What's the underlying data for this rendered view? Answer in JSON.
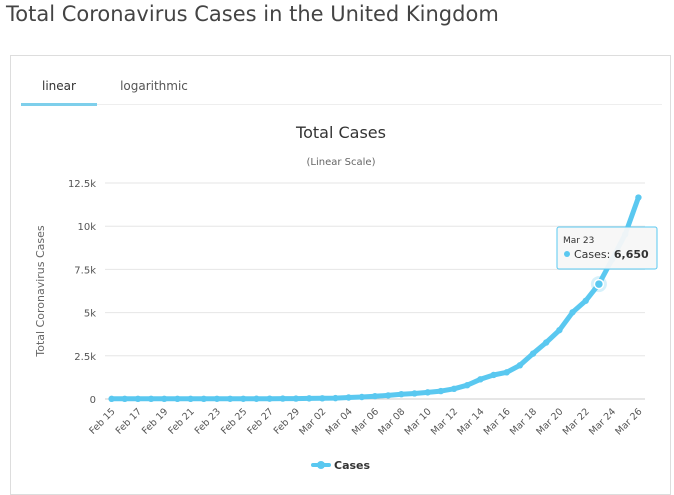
{
  "page": {
    "title": "Total Coronavirus Cases in the United Kingdom"
  },
  "tabs": [
    {
      "label": "linear",
      "active": true
    },
    {
      "label": "logarithmic",
      "active": false
    }
  ],
  "colors": {
    "series": "#5ac8f0",
    "accent_tab": "#7ecfeb",
    "grid": "#e6e6e6",
    "tooltip_border": "#5ac8f0"
  },
  "chart_data": {
    "type": "line",
    "title": "Total Cases",
    "subtitle": "(Linear Scale)",
    "xlabel": "",
    "ylabel": "Total Coronavirus Cases",
    "ylim": [
      0,
      12500
    ],
    "y_ticks": [
      0,
      2500,
      5000,
      7500,
      10000,
      12500
    ],
    "y_tick_labels": [
      "0",
      "2.5k",
      "5k",
      "7.5k",
      "10k",
      "12.5k"
    ],
    "grid": true,
    "legend": "bottom-center",
    "categories": [
      "Feb 15",
      "Feb 16",
      "Feb 17",
      "Feb 18",
      "Feb 19",
      "Feb 20",
      "Feb 21",
      "Feb 22",
      "Feb 23",
      "Feb 24",
      "Feb 25",
      "Feb 26",
      "Feb 27",
      "Feb 28",
      "Feb 29",
      "Mar 01",
      "Mar 02",
      "Mar 03",
      "Mar 04",
      "Mar 05",
      "Mar 06",
      "Mar 07",
      "Mar 08",
      "Mar 09",
      "Mar 10",
      "Mar 11",
      "Mar 12",
      "Mar 13",
      "Mar 14",
      "Mar 15",
      "Mar 16",
      "Mar 17",
      "Mar 18",
      "Mar 19",
      "Mar 20",
      "Mar 21",
      "Mar 22",
      "Mar 23",
      "Mar 24",
      "Mar 25",
      "Mar 26"
    ],
    "x_tick_labels": [
      "Feb 15",
      "Feb 17",
      "Feb 19",
      "Feb 21",
      "Feb 23",
      "Feb 25",
      "Feb 27",
      "Feb 29",
      "Mar 02",
      "Mar 04",
      "Mar 06",
      "Mar 08",
      "Mar 10",
      "Mar 12",
      "Mar 14",
      "Mar 16",
      "Mar 18",
      "Mar 20",
      "Mar 22",
      "Mar 24",
      "Mar 26"
    ],
    "series": [
      {
        "name": "Cases",
        "values": [
          9,
          9,
          9,
          9,
          9,
          9,
          9,
          9,
          13,
          13,
          13,
          15,
          20,
          23,
          23,
          36,
          40,
          51,
          87,
          116,
          164,
          209,
          278,
          321,
          383,
          460,
          590,
          798,
          1140,
          1391,
          1543,
          1950,
          2626,
          3269,
          3983,
          5018,
          5683,
          6650,
          8077,
          9529,
          11658
        ]
      }
    ],
    "tooltip": {
      "date": "Mar 23",
      "label": "Cases",
      "value": "6,650",
      "index": 37
    }
  }
}
